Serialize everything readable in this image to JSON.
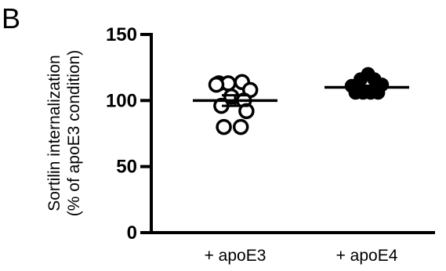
{
  "panel_label": "B",
  "chart_data": {
    "type": "scatter",
    "title": "",
    "ylabel_lines": [
      "Sortilin internalization",
      "(% of apoE3 condition)"
    ],
    "xlabel": "",
    "ylim": [
      0,
      150
    ],
    "yticks": [
      0,
      50,
      100,
      150
    ],
    "categories": [
      "+ apoE3",
      "+ apoE4"
    ],
    "grid": false,
    "legend": "none",
    "series": [
      {
        "category": "+ apoE3",
        "marker": "open-circle",
        "mean": 100,
        "sem": 4,
        "points": [
          {
            "x_offset": -1.3,
            "y": 113
          },
          {
            "x_offset": -0.55,
            "y": 113
          },
          {
            "x_offset": 0.55,
            "y": 114
          },
          {
            "x_offset": -1.5,
            "y": 112
          },
          {
            "x_offset": 1.2,
            "y": 108
          },
          {
            "x_offset": -0.3,
            "y": 103
          },
          {
            "x_offset": 0.7,
            "y": 100
          },
          {
            "x_offset": -1.1,
            "y": 96
          },
          {
            "x_offset": 0.9,
            "y": 92
          },
          {
            "x_offset": -0.9,
            "y": 80
          },
          {
            "x_offset": 0.45,
            "y": 80
          }
        ]
      },
      {
        "category": "+ apoE4",
        "marker": "filled-circle",
        "mean": 110,
        "sem": 1.2,
        "points": [
          {
            "x_offset": 0.1,
            "y": 120
          },
          {
            "x_offset": -0.5,
            "y": 116
          },
          {
            "x_offset": 0.6,
            "y": 116
          },
          {
            "x_offset": -1.2,
            "y": 111
          },
          {
            "x_offset": 1.2,
            "y": 112
          },
          {
            "x_offset": -0.9,
            "y": 106
          },
          {
            "x_offset": -0.3,
            "y": 106
          },
          {
            "x_offset": 0.3,
            "y": 106
          },
          {
            "x_offset": 0.9,
            "y": 106
          }
        ]
      }
    ]
  }
}
